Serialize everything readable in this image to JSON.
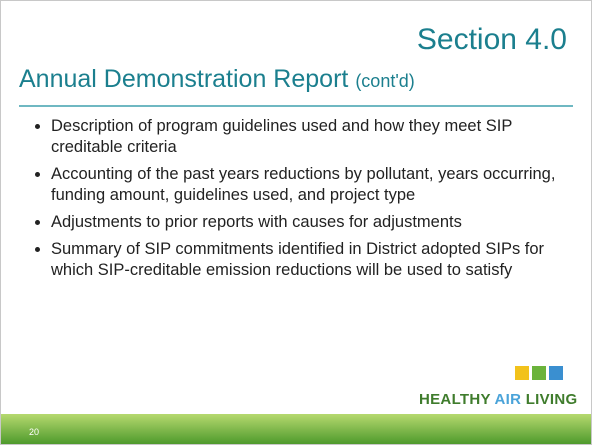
{
  "header": {
    "section": "Section 4.0",
    "title": "Annual Demonstration Report",
    "title_suffix": "(cont'd)"
  },
  "bullets": [
    "Description of program guidelines used and how they meet SIP creditable criteria",
    "Accounting of the past years reductions by pollutant, years occurring, funding amount, guidelines used, and project type",
    "Adjustments to prior reports with causes for adjustments",
    "Summary of SIP commitments identified in District adopted SIPs for which SIP-creditable emission reductions will be used to satisfy"
  ],
  "footer": {
    "page_number": "20",
    "logo": [
      "HEALTHY",
      "AIR",
      "LIVING"
    ]
  }
}
